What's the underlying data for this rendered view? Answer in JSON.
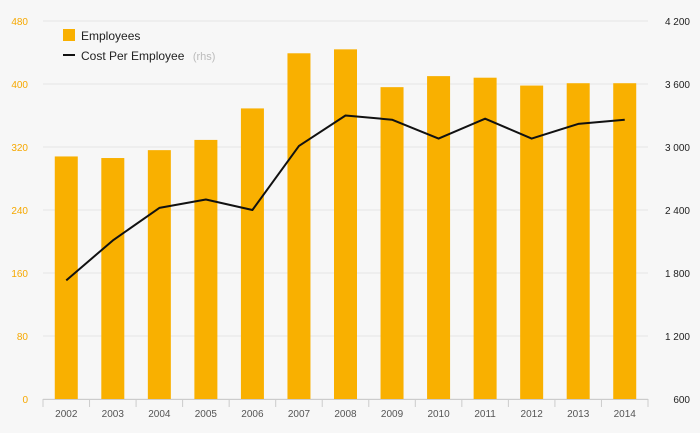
{
  "chart_data": {
    "type": "bar",
    "categories": [
      "2002",
      "2003",
      "2004",
      "2005",
      "2006",
      "2007",
      "2008",
      "2009",
      "2010",
      "2011",
      "2012",
      "2013",
      "2014"
    ],
    "series": [
      {
        "name": "Employees",
        "type": "bar",
        "axis": "left",
        "color": "#f9b000",
        "values": [
          308,
          306,
          316,
          329,
          369,
          439,
          444,
          396,
          410,
          408,
          398,
          401,
          401
        ]
      },
      {
        "name": "Cost Per Employee",
        "name_suffix": "(rhs)",
        "type": "line",
        "axis": "right",
        "color": "#111111",
        "values": [
          1730,
          2110,
          2420,
          2500,
          2400,
          3010,
          3300,
          3260,
          3080,
          3270,
          3080,
          3220,
          3260
        ]
      }
    ],
    "y_left": {
      "ticks": [
        "0",
        "80",
        "160",
        "240",
        "320",
        "400",
        "480"
      ],
      "range": [
        0,
        480
      ],
      "color": "#f6a800"
    },
    "y_right": {
      "ticks": [
        "600",
        "1 200",
        "1 800",
        "2 400",
        "3 000",
        "3 600",
        "4 200"
      ],
      "range": [
        600,
        4200
      ],
      "color": "#222222"
    },
    "grid": true,
    "legend_position": "top-left"
  }
}
